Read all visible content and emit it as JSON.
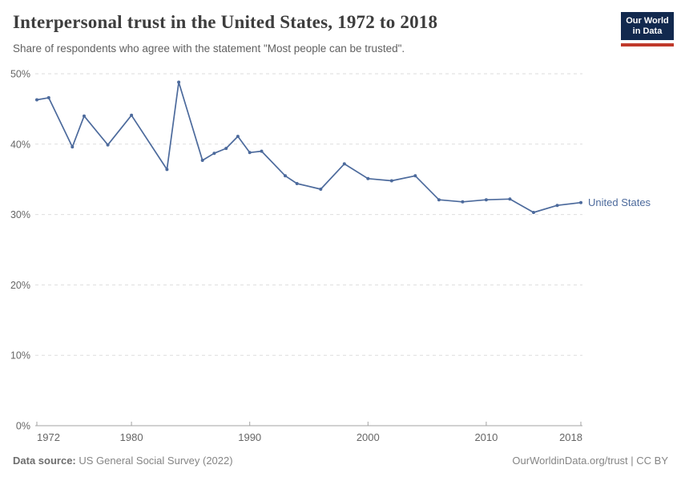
{
  "header": {
    "title": "Interpersonal trust in the United States, 1972 to 2018",
    "subtitle": "Share of respondents who agree with the statement \"Most people can be trusted\".",
    "logo": {
      "line1": "Our World",
      "line2": "in Data"
    }
  },
  "footer": {
    "source_label": "Data source:",
    "source_text": " US General Social Survey (2022)",
    "credit": "OurWorldinData.org/trust | CC BY"
  },
  "colors": {
    "line": "#4c6a9c",
    "end_label": "#4c6a9c",
    "grid": "#dedede",
    "axis": "#a3a3a3",
    "tick_text": "#666666",
    "title_text": "#3d3d3d",
    "subtitle_text": "#616161",
    "footer_text": "#858585",
    "logo_bg": "#12294e",
    "logo_accent": "#c0392b"
  },
  "chart_data": {
    "type": "line",
    "title": "Interpersonal trust in the United States, 1972 to 2018",
    "xlabel": "",
    "ylabel": "",
    "xlim": [
      1972,
      2018
    ],
    "ylim": [
      0,
      50
    ],
    "xticks": [
      1972,
      1980,
      1990,
      2000,
      2010,
      2018
    ],
    "yticks": [
      0,
      10,
      20,
      30,
      40,
      50
    ],
    "ytick_suffix": "%",
    "grid": "horizontal-dashed",
    "legend": "end-of-line-label",
    "end_label": "United States",
    "series": [
      {
        "name": "United States",
        "x": [
          1972,
          1973,
          1975,
          1976,
          1978,
          1980,
          1983,
          1984,
          1986,
          1987,
          1988,
          1989,
          1990,
          1991,
          1993,
          1994,
          1996,
          1998,
          2000,
          2002,
          2004,
          2006,
          2008,
          2010,
          2012,
          2014,
          2016,
          2018
        ],
        "values": [
          46.3,
          46.6,
          39.6,
          44.0,
          39.9,
          44.1,
          36.4,
          48.8,
          37.7,
          38.7,
          39.4,
          41.1,
          38.8,
          39.0,
          35.5,
          34.4,
          33.6,
          37.2,
          35.1,
          34.8,
          35.5,
          32.1,
          31.8,
          32.1,
          32.2,
          30.3,
          31.3,
          31.7
        ]
      }
    ]
  }
}
